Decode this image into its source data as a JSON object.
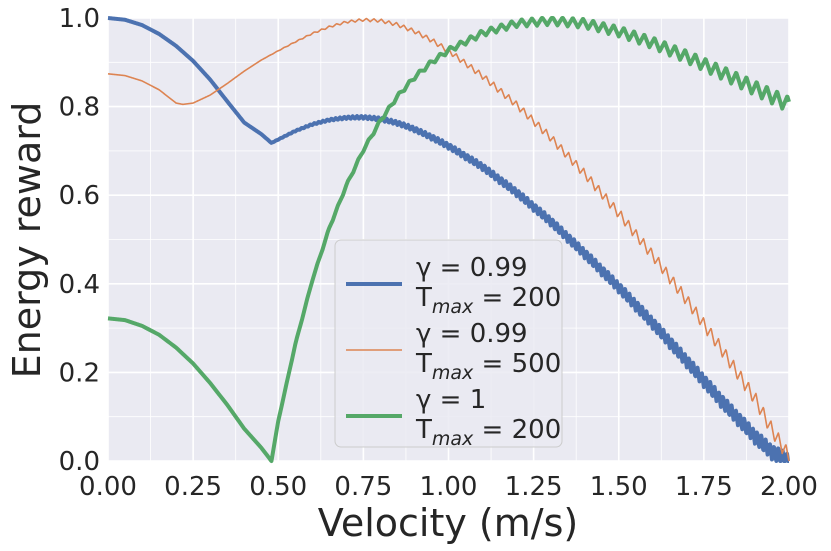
{
  "chart_data": {
    "type": "line",
    "xlabel": "Velocity (m/s)",
    "ylabel": "Energy reward",
    "xlim": [
      0,
      2
    ],
    "ylim": [
      0,
      1
    ],
    "xticks": [
      "0.00",
      "0.25",
      "0.50",
      "0.75",
      "1.00",
      "1.25",
      "1.50",
      "1.75",
      "2.00"
    ],
    "yticks": [
      "0.0",
      "0.2",
      "0.4",
      "0.6",
      "0.8",
      "1.0"
    ],
    "grid": true,
    "legend_position": "center",
    "series": [
      {
        "color": "#4c72b0",
        "legend_line1": "γ = 0.99",
        "legend_line2_base": "T",
        "legend_line2_sub": "max",
        "legend_line2_rest": " = 200",
        "x": [
          0.0,
          0.05,
          0.1,
          0.15,
          0.2,
          0.25,
          0.3,
          0.35,
          0.4,
          0.45,
          0.48,
          0.55,
          0.6,
          0.65,
          0.7,
          0.75,
          0.8,
          0.85,
          0.9,
          0.95,
          1.0,
          1.1,
          1.2,
          1.3,
          1.4,
          1.5,
          1.6,
          1.7,
          1.8,
          1.9,
          1.95,
          2.0
        ],
        "values": [
          1.0,
          0.996,
          0.984,
          0.964,
          0.937,
          0.903,
          0.861,
          0.812,
          0.764,
          0.738,
          0.718,
          0.745,
          0.76,
          0.77,
          0.775,
          0.776,
          0.772,
          0.763,
          0.749,
          0.731,
          0.711,
          0.664,
          0.606,
          0.541,
          0.468,
          0.392,
          0.311,
          0.225,
          0.137,
          0.055,
          0.02,
          0.0
        ],
        "oscillating": true
      },
      {
        "color": "#dd8452",
        "legend_line1": "γ = 0.99",
        "legend_line2_base": "T",
        "legend_line2_sub": "max",
        "legend_line2_rest": " = 500",
        "x": [
          0.0,
          0.05,
          0.1,
          0.15,
          0.2,
          0.22,
          0.25,
          0.3,
          0.35,
          0.4,
          0.45,
          0.5,
          0.55,
          0.6,
          0.65,
          0.7,
          0.75,
          0.8,
          0.85,
          0.9,
          0.95,
          1.0,
          1.1,
          1.2,
          1.3,
          1.4,
          1.5,
          1.6,
          1.7,
          1.8,
          1.9,
          1.95,
          2.0
        ],
        "values": [
          0.874,
          0.87,
          0.858,
          0.838,
          0.808,
          0.805,
          0.808,
          0.826,
          0.852,
          0.88,
          0.905,
          0.926,
          0.946,
          0.965,
          0.98,
          0.991,
          0.996,
          0.994,
          0.985,
          0.97,
          0.95,
          0.926,
          0.869,
          0.804,
          0.73,
          0.648,
          0.559,
          0.464,
          0.363,
          0.254,
          0.141,
          0.07,
          0.01
        ],
        "oscillating": true
      },
      {
        "color": "#55a868",
        "legend_line1": "γ = 1",
        "legend_line2_base": "T",
        "legend_line2_sub": "max",
        "legend_line2_rest": " = 200",
        "x": [
          0.0,
          0.05,
          0.1,
          0.15,
          0.2,
          0.25,
          0.3,
          0.35,
          0.4,
          0.45,
          0.48,
          0.5,
          0.55,
          0.6,
          0.65,
          0.7,
          0.75,
          0.8,
          0.85,
          0.9,
          0.95,
          1.0,
          1.1,
          1.2,
          1.3,
          1.4,
          1.5,
          1.6,
          1.7,
          1.8,
          1.9,
          2.0
        ],
        "values": [
          0.322,
          0.318,
          0.305,
          0.285,
          0.256,
          0.22,
          0.176,
          0.127,
          0.073,
          0.03,
          0.0,
          0.09,
          0.263,
          0.408,
          0.526,
          0.622,
          0.702,
          0.768,
          0.823,
          0.866,
          0.9,
          0.927,
          0.966,
          0.988,
          0.994,
          0.988,
          0.97,
          0.944,
          0.913,
          0.878,
          0.842,
          0.805
        ],
        "oscillating": true
      }
    ]
  }
}
